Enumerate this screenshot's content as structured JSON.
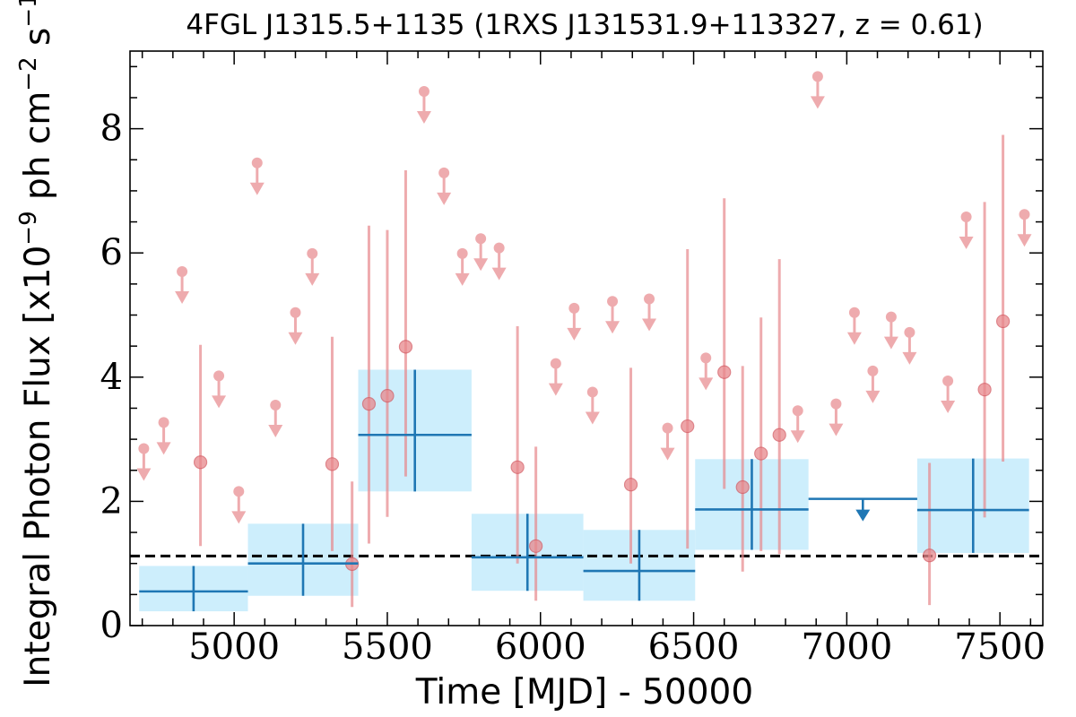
{
  "title": "4FGL J1315.5+1135 (1RXS J131531.9+113327, z = 0.61)",
  "chart_data": {
    "type": "scatter",
    "title": "4FGL J1315.5+1135 (1RXS J131531.9+113327, z = 0.61)",
    "xlabel": "Time [MJD] - 50000",
    "ylabel": "Integral Photon Flux [x10^-9 ph cm^-2 s^-1]",
    "xlim": [
      4660,
      7640
    ],
    "ylim": [
      0,
      9.25
    ],
    "xticks": [
      5000,
      5500,
      6000,
      6500,
      7000,
      7500
    ],
    "yticks": [
      0,
      2,
      4,
      6,
      8
    ],
    "mean_flux": 1.12,
    "colors": {
      "short_bins": "#e8888c",
      "long_bins": "#1f77b4",
      "long_bins_band": "#cdeefc",
      "mean_line": "#000000"
    },
    "short_bins_detections": [
      {
        "x": 4890,
        "y": 2.63,
        "ylo": 1.28,
        "yhi": 4.52
      },
      {
        "x": 5320,
        "y": 2.6,
        "ylo": 1.2,
        "yhi": 4.65
      },
      {
        "x": 5385,
        "y": 0.99,
        "ylo": 0.3,
        "yhi": 2.32
      },
      {
        "x": 5440,
        "y": 3.57,
        "ylo": 1.32,
        "yhi": 6.44
      },
      {
        "x": 5500,
        "y": 3.7,
        "ylo": 1.75,
        "yhi": 6.37
      },
      {
        "x": 5560,
        "y": 4.49,
        "ylo": 2.4,
        "yhi": 7.33
      },
      {
        "x": 5925,
        "y": 2.55,
        "ylo": 1.0,
        "yhi": 4.82
      },
      {
        "x": 5985,
        "y": 1.28,
        "ylo": 0.4,
        "yhi": 2.88
      },
      {
        "x": 6295,
        "y": 2.27,
        "ylo": 1.0,
        "yhi": 4.15
      },
      {
        "x": 6480,
        "y": 3.21,
        "ylo": 1.24,
        "yhi": 6.06
      },
      {
        "x": 6600,
        "y": 4.08,
        "ylo": 2.2,
        "yhi": 6.88
      },
      {
        "x": 6660,
        "y": 2.23,
        "ylo": 0.87,
        "yhi": 4.18
      },
      {
        "x": 6720,
        "y": 2.77,
        "ylo": 1.2,
        "yhi": 4.96
      },
      {
        "x": 6780,
        "y": 3.07,
        "ylo": 1.15,
        "yhi": 5.9
      },
      {
        "x": 7270,
        "y": 1.13,
        "ylo": 0.33,
        "yhi": 2.62
      },
      {
        "x": 7450,
        "y": 3.8,
        "ylo": 1.74,
        "yhi": 6.82
      },
      {
        "x": 7510,
        "y": 4.9,
        "ylo": 2.64,
        "yhi": 7.9
      }
    ],
    "short_bins_upper_limits": [
      {
        "x": 4705,
        "y": 2.85
      },
      {
        "x": 4770,
        "y": 3.27
      },
      {
        "x": 4830,
        "y": 5.7
      },
      {
        "x": 4950,
        "y": 4.02
      },
      {
        "x": 5015,
        "y": 2.16
      },
      {
        "x": 5075,
        "y": 7.45
      },
      {
        "x": 5135,
        "y": 3.55
      },
      {
        "x": 5200,
        "y": 5.04
      },
      {
        "x": 5255,
        "y": 5.99
      },
      {
        "x": 5620,
        "y": 8.6
      },
      {
        "x": 5685,
        "y": 7.29
      },
      {
        "x": 5745,
        "y": 5.99
      },
      {
        "x": 5805,
        "y": 6.23
      },
      {
        "x": 5865,
        "y": 6.08
      },
      {
        "x": 6050,
        "y": 4.22
      },
      {
        "x": 6110,
        "y": 5.11
      },
      {
        "x": 6170,
        "y": 3.76
      },
      {
        "x": 6235,
        "y": 5.22
      },
      {
        "x": 6355,
        "y": 5.26
      },
      {
        "x": 6415,
        "y": 3.18
      },
      {
        "x": 6540,
        "y": 4.31
      },
      {
        "x": 6840,
        "y": 3.46
      },
      {
        "x": 6905,
        "y": 8.84
      },
      {
        "x": 6965,
        "y": 3.57
      },
      {
        "x": 7025,
        "y": 5.04
      },
      {
        "x": 7085,
        "y": 4.1
      },
      {
        "x": 7145,
        "y": 4.97
      },
      {
        "x": 7205,
        "y": 4.72
      },
      {
        "x": 7330,
        "y": 3.94
      },
      {
        "x": 7390,
        "y": 6.58
      },
      {
        "x": 7580,
        "y": 6.62
      }
    ],
    "long_bins_detections": [
      {
        "x0": 4690,
        "x1": 5045,
        "y": 0.55,
        "ylo": 0.23,
        "yhi": 0.96
      },
      {
        "x0": 5045,
        "x1": 5405,
        "y": 1.0,
        "ylo": 0.48,
        "yhi": 1.64
      },
      {
        "x0": 5405,
        "x1": 5775,
        "y": 3.07,
        "ylo": 2.16,
        "yhi": 4.12
      },
      {
        "x0": 5775,
        "x1": 6140,
        "y": 1.1,
        "ylo": 0.56,
        "yhi": 1.8
      },
      {
        "x0": 6140,
        "x1": 6505,
        "y": 0.88,
        "ylo": 0.4,
        "yhi": 1.54
      },
      {
        "x0": 6505,
        "x1": 6875,
        "y": 1.87,
        "ylo": 1.22,
        "yhi": 2.68
      },
      {
        "x0": 7230,
        "x1": 7595,
        "y": 1.86,
        "ylo": 1.17,
        "yhi": 2.69
      }
    ],
    "long_bins_upper_limits": [
      {
        "x0": 6875,
        "x1": 7230,
        "y": 2.04
      }
    ]
  }
}
